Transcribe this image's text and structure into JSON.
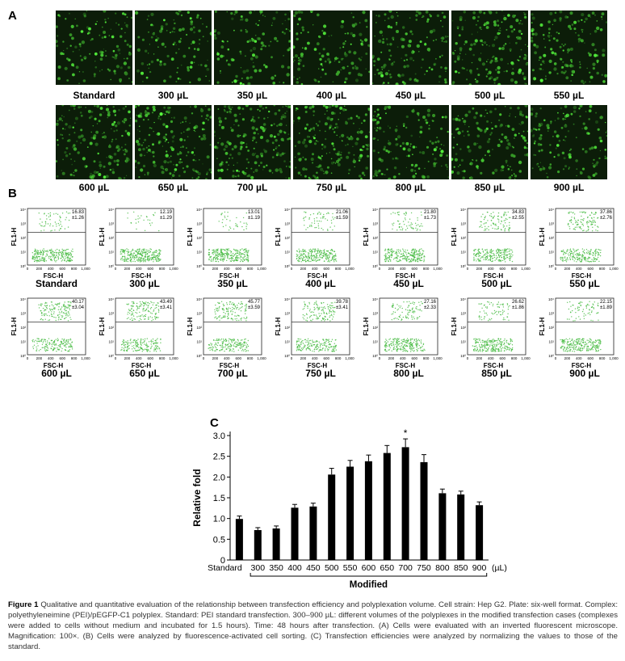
{
  "panels": {
    "a": "A",
    "b": "B",
    "c": "C"
  },
  "microscopy": {
    "row1": [
      "Standard",
      "300 µL",
      "350 µL",
      "400 µL",
      "450 µL",
      "500 µL",
      "550 µL"
    ],
    "row2": [
      "600 µL",
      "650 µL",
      "700 µL",
      "750 µL",
      "800 µL",
      "850 µL",
      "900 µL"
    ],
    "brightness_row1": [
      0.45,
      0.35,
      0.4,
      0.45,
      0.55,
      0.75,
      0.55
    ],
    "brightness_row2": [
      0.7,
      0.8,
      0.85,
      0.8,
      0.55,
      0.6,
      0.5
    ]
  },
  "facs": {
    "y_axis_label": "FL1-H",
    "x_axis_label": "FSC-H",
    "x_ticks": [
      "0",
      "200",
      "400",
      "600",
      "800",
      "1,000"
    ],
    "y_ticks": [
      "10⁴",
      "10³",
      "10²",
      "10¹",
      "10⁰"
    ],
    "plots": [
      {
        "label": "Standard",
        "value": "16.83",
        "sd": "±1.26"
      },
      {
        "label": "300 µL",
        "value": "12.19",
        "sd": "±1.29"
      },
      {
        "label": "350 µL",
        "value": "13.01",
        "sd": "±1.19"
      },
      {
        "label": "400 µL",
        "value": "21.06",
        "sd": "±1.59"
      },
      {
        "label": "450 µL",
        "value": "21.80",
        "sd": "±1.73"
      },
      {
        "label": "500 µL",
        "value": "34.83",
        "sd": "±2.55"
      },
      {
        "label": "550 µL",
        "value": "37.86",
        "sd": "±2.76"
      },
      {
        "label": "600 µL",
        "value": "40.17",
        "sd": "±3.04"
      },
      {
        "label": "650 µL",
        "value": "43.49",
        "sd": "±3.41"
      },
      {
        "label": "700 µL",
        "value": "45.77",
        "sd": "±3.59"
      },
      {
        "label": "750 µL",
        "value": "39.78",
        "sd": "±3.41"
      },
      {
        "label": "800 µL",
        "value": "27.16",
        "sd": "±2.33"
      },
      {
        "label": "850 µL",
        "value": "26.62",
        "sd": "±1.86"
      },
      {
        "label": "900 µL",
        "value": "22.15",
        "sd": "±1.89"
      }
    ]
  },
  "chart_data": {
    "type": "bar",
    "categories": [
      "Standard",
      "300",
      "350",
      "400",
      "450",
      "500",
      "550",
      "600",
      "650",
      "700",
      "750",
      "800",
      "850",
      "900"
    ],
    "values": [
      0.99,
      0.72,
      0.76,
      1.26,
      1.29,
      2.06,
      2.25,
      2.38,
      2.58,
      2.72,
      2.36,
      1.61,
      1.58,
      1.32
    ],
    "errors": [
      0.07,
      0.06,
      0.06,
      0.08,
      0.08,
      0.15,
      0.15,
      0.15,
      0.18,
      0.2,
      0.18,
      0.1,
      0.08,
      0.08
    ],
    "significance": [
      {
        "category": "700",
        "mark": "*"
      }
    ],
    "ylabel": "Relative fold",
    "xlabel": "Modified",
    "x_unit": "(µL)",
    "ylim": [
      0,
      3.0
    ],
    "yticks": [
      "0",
      "0.5",
      "1.0",
      "1.5",
      "2.0",
      "2.5",
      "3.0"
    ],
    "grid": false,
    "bar_color": "#000000"
  },
  "caption": {
    "figure_label": "Figure 1",
    "text": "Qualitative and quantitative evaluation of the relationship between transfection efficiency and polyplexation volume. Cell strain: Hep G2. Plate: six-well format. Complex: polyethyleneimine (PEI)/pEGFP-C1 polyplex. Standard: PEI standard transfection. 300–900 µL: different volumes of the polyplexes in the modified transfection cases (complexes were added to cells without medium and incubated for 1.5 hours). Time: 48 hours after transfection. (A) Cells were evaluated with an inverted fluorescent microscope. Magnification: 100×. (B) Cells were analyzed by fluorescence-activated cell sorting. (C) Transfection efficiencies were analyzed by normalizing the values to those of the standard."
  }
}
